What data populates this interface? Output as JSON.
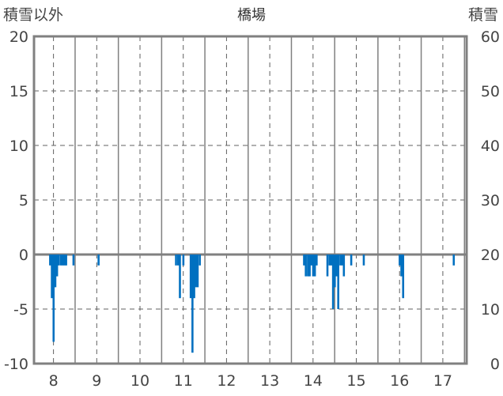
{
  "chart_data": {
    "type": "bar",
    "title": "橋場",
    "left_axis_label": "積雪以外",
    "right_axis_label": "積雪",
    "ylim_left": [
      -10,
      20
    ],
    "ylim_right": [
      0,
      60
    ],
    "left_ticks": [
      20,
      15,
      10,
      5,
      0,
      -5,
      -10
    ],
    "right_ticks": [
      60,
      50,
      40,
      30,
      20,
      10,
      0
    ],
    "x_range": [
      7.55,
      17.55
    ],
    "x_ticks": [
      8,
      9,
      10,
      11,
      12,
      13,
      14,
      15,
      16,
      17
    ],
    "grid": true,
    "bar_color": "#0070C0",
    "axis_color": "#808080",
    "series": [
      {
        "values": [
          {
            "x": 7.92,
            "y": -1
          },
          {
            "x": 7.96,
            "y": -4
          },
          {
            "x": 8.0,
            "y": -8
          },
          {
            "x": 8.04,
            "y": -3
          },
          {
            "x": 8.08,
            "y": -2
          },
          {
            "x": 8.12,
            "y": -1
          },
          {
            "x": 8.17,
            "y": -1
          },
          {
            "x": 8.21,
            "y": -1
          },
          {
            "x": 8.25,
            "y": -1
          },
          {
            "x": 8.29,
            "y": -1
          },
          {
            "x": 8.46,
            "y": -1
          },
          {
            "x": 9.04,
            "y": -1
          },
          {
            "x": 10.83,
            "y": -1
          },
          {
            "x": 10.88,
            "y": -1
          },
          {
            "x": 10.92,
            "y": -4
          },
          {
            "x": 11.0,
            "y": -1
          },
          {
            "x": 11.17,
            "y": -4
          },
          {
            "x": 11.21,
            "y": -9
          },
          {
            "x": 11.25,
            "y": -4
          },
          {
            "x": 11.29,
            "y": -3
          },
          {
            "x": 11.33,
            "y": -3
          },
          {
            "x": 11.38,
            "y": -1
          },
          {
            "x": 13.79,
            "y": -1
          },
          {
            "x": 13.83,
            "y": -2
          },
          {
            "x": 13.88,
            "y": -2
          },
          {
            "x": 13.92,
            "y": -2
          },
          {
            "x": 13.96,
            "y": -1
          },
          {
            "x": 14.0,
            "y": -2
          },
          {
            "x": 14.04,
            "y": -2
          },
          {
            "x": 14.08,
            "y": -1
          },
          {
            "x": 14.33,
            "y": -2
          },
          {
            "x": 14.38,
            "y": -1
          },
          {
            "x": 14.42,
            "y": -1
          },
          {
            "x": 14.46,
            "y": -5
          },
          {
            "x": 14.5,
            "y": -3
          },
          {
            "x": 14.54,
            "y": -2
          },
          {
            "x": 14.58,
            "y": -5
          },
          {
            "x": 14.63,
            "y": -1
          },
          {
            "x": 14.67,
            "y": -1
          },
          {
            "x": 14.71,
            "y": -2
          },
          {
            "x": 14.88,
            "y": -1
          },
          {
            "x": 15.17,
            "y": -1
          },
          {
            "x": 16.0,
            "y": -1
          },
          {
            "x": 16.04,
            "y": -2
          },
          {
            "x": 16.08,
            "y": -4
          },
          {
            "x": 17.25,
            "y": -1
          }
        ]
      }
    ]
  }
}
